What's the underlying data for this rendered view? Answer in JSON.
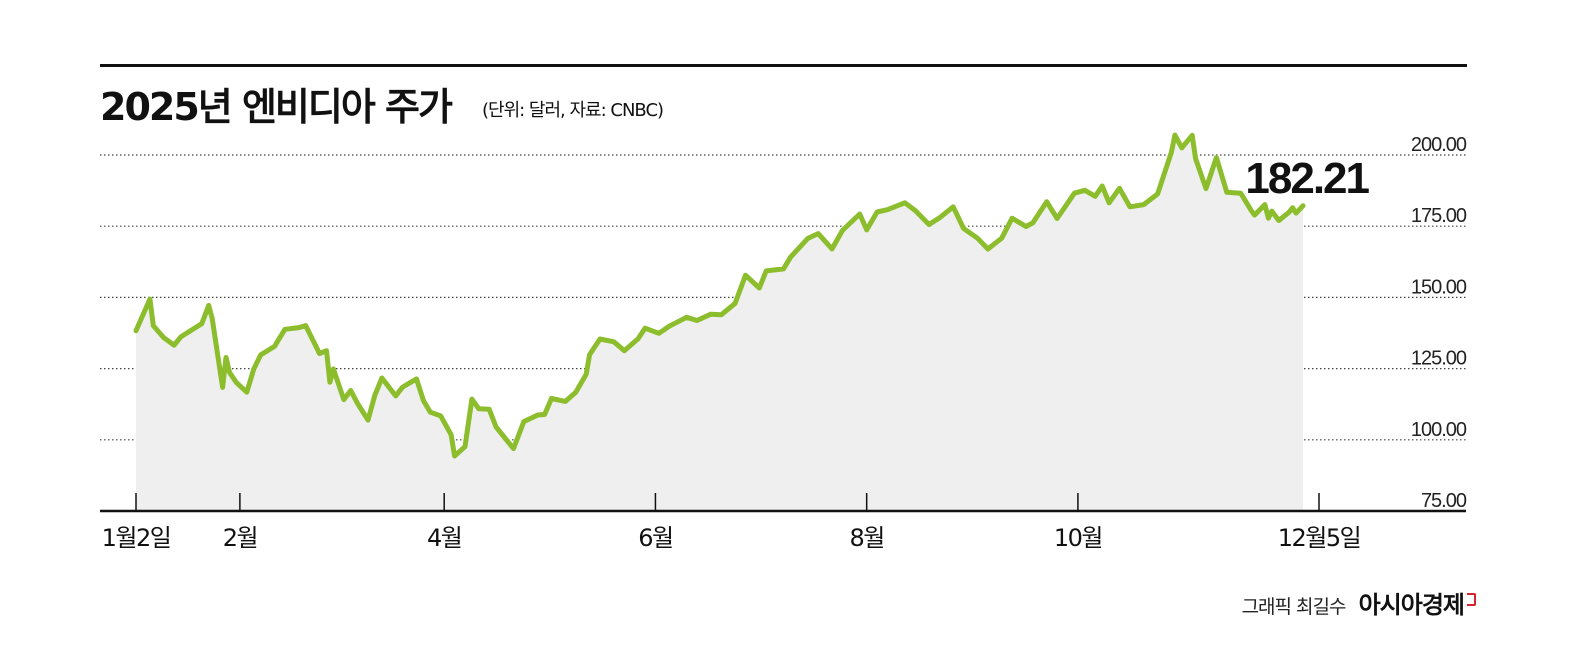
{
  "title": "2025년 엔비디아 주가",
  "subtitle": "(단위: 달러, 자료: CNBC)",
  "credit": {
    "text": "그래픽 최길수",
    "brand": "아시아경제"
  },
  "colors": {
    "line": "#8cbd2c",
    "area": "#efefef",
    "grid": "#444444",
    "axis": "#111111",
    "brand_mark": "#d9232e"
  },
  "chart_data": {
    "type": "area",
    "title": "2025년 엔비디아 주가",
    "subtitle": "(단위: 달러, 자료: CNBC)",
    "xlabel": "",
    "ylabel": "",
    "ylim": [
      75,
      200
    ],
    "yticks": [
      75,
      100,
      125,
      150,
      175,
      200
    ],
    "ytick_labels": [
      "75.00",
      "100.00",
      "125.00",
      "150.00",
      "175.00",
      "200.00"
    ],
    "xticks": [
      {
        "date": "2025-01-02",
        "label": "1월2일"
      },
      {
        "date": "2025-02-01",
        "label": "2월"
      },
      {
        "date": "2025-04-01",
        "label": "4월"
      },
      {
        "date": "2025-06-01",
        "label": "6월"
      },
      {
        "date": "2025-08-01",
        "label": "8월"
      },
      {
        "date": "2025-10-01",
        "label": "10월"
      },
      {
        "date": "2025-12-05",
        "label": "12월5일"
      }
    ],
    "grid": "horizontal dotted",
    "last_value_label": "182.21",
    "series": [
      {
        "points": [
          [
            "2025-01-02",
            138.3
          ],
          [
            "2025-01-06",
            149.4
          ],
          [
            "2025-01-07",
            140.1
          ],
          [
            "2025-01-10",
            135.9
          ],
          [
            "2025-01-13",
            133.2
          ],
          [
            "2025-01-15",
            136.2
          ],
          [
            "2025-01-17",
            137.7
          ],
          [
            "2025-01-21",
            140.8
          ],
          [
            "2025-01-23",
            147.2
          ],
          [
            "2025-01-24",
            142.6
          ],
          [
            "2025-01-27",
            118.4
          ],
          [
            "2025-01-28",
            128.9
          ],
          [
            "2025-01-29",
            123.7
          ],
          [
            "2025-01-31",
            120.1
          ],
          [
            "2025-02-03",
            116.7
          ],
          [
            "2025-02-05",
            124.8
          ],
          [
            "2025-02-07",
            129.8
          ],
          [
            "2025-02-11",
            132.8
          ],
          [
            "2025-02-14",
            138.8
          ],
          [
            "2025-02-18",
            139.4
          ],
          [
            "2025-02-20",
            140.1
          ],
          [
            "2025-02-24",
            130.3
          ],
          [
            "2025-02-26",
            131.3
          ],
          [
            "2025-02-27",
            120.2
          ],
          [
            "2025-02-28",
            124.9
          ],
          [
            "2025-03-03",
            114.1
          ],
          [
            "2025-03-05",
            117.3
          ],
          [
            "2025-03-07",
            112.7
          ],
          [
            "2025-03-10",
            106.9
          ],
          [
            "2025-03-12",
            115.7
          ],
          [
            "2025-03-14",
            121.7
          ],
          [
            "2025-03-18",
            115.4
          ],
          [
            "2025-03-20",
            118.5
          ],
          [
            "2025-03-24",
            121.4
          ],
          [
            "2025-03-26",
            113.8
          ],
          [
            "2025-03-28",
            109.7
          ],
          [
            "2025-03-31",
            108.4
          ],
          [
            "2025-04-03",
            101.8
          ],
          [
            "2025-04-04",
            94.3
          ],
          [
            "2025-04-07",
            97.6
          ],
          [
            "2025-04-09",
            114.3
          ],
          [
            "2025-04-11",
            110.9
          ],
          [
            "2025-04-14",
            110.7
          ],
          [
            "2025-04-16",
            104.5
          ],
          [
            "2025-04-21",
            96.9
          ],
          [
            "2025-04-24",
            106.4
          ],
          [
            "2025-04-28",
            108.7
          ],
          [
            "2025-04-30",
            108.9
          ],
          [
            "2025-05-02",
            114.5
          ],
          [
            "2025-05-06",
            113.5
          ],
          [
            "2025-05-09",
            116.7
          ],
          [
            "2025-05-12",
            123.0
          ],
          [
            "2025-05-13",
            129.9
          ],
          [
            "2025-05-16",
            135.4
          ],
          [
            "2025-05-20",
            134.4
          ],
          [
            "2025-05-23",
            131.3
          ],
          [
            "2025-05-27",
            135.5
          ],
          [
            "2025-05-29",
            139.2
          ],
          [
            "2025-06-02",
            137.4
          ],
          [
            "2025-06-05",
            139.9
          ],
          [
            "2025-06-10",
            143.0
          ],
          [
            "2025-06-13",
            141.9
          ],
          [
            "2025-06-17",
            144.1
          ],
          [
            "2025-06-20",
            143.9
          ],
          [
            "2025-06-24",
            147.9
          ],
          [
            "2025-06-27",
            157.8
          ],
          [
            "2025-07-01",
            153.3
          ],
          [
            "2025-07-03",
            159.3
          ],
          [
            "2025-07-08",
            160.0
          ],
          [
            "2025-07-10",
            164.1
          ],
          [
            "2025-07-15",
            170.7
          ],
          [
            "2025-07-18",
            172.4
          ],
          [
            "2025-07-22",
            167.0
          ],
          [
            "2025-07-25",
            173.5
          ],
          [
            "2025-07-30",
            179.3
          ],
          [
            "2025-08-01",
            173.7
          ],
          [
            "2025-08-04",
            180.0
          ],
          [
            "2025-08-07",
            180.8
          ],
          [
            "2025-08-12",
            183.2
          ],
          [
            "2025-08-15",
            180.5
          ],
          [
            "2025-08-19",
            175.6
          ],
          [
            "2025-08-22",
            177.9
          ],
          [
            "2025-08-26",
            181.8
          ],
          [
            "2025-08-29",
            174.2
          ],
          [
            "2025-09-02",
            170.8
          ],
          [
            "2025-09-05",
            167.0
          ],
          [
            "2025-09-09",
            170.8
          ],
          [
            "2025-09-12",
            177.8
          ],
          [
            "2025-09-16",
            174.9
          ],
          [
            "2025-09-18",
            176.2
          ],
          [
            "2025-09-22",
            183.6
          ],
          [
            "2025-09-25",
            177.7
          ],
          [
            "2025-09-30",
            186.6
          ],
          [
            "2025-10-03",
            187.6
          ],
          [
            "2025-10-06",
            185.5
          ],
          [
            "2025-10-08",
            189.1
          ],
          [
            "2025-10-10",
            183.2
          ],
          [
            "2025-10-13",
            188.3
          ],
          [
            "2025-10-16",
            181.8
          ],
          [
            "2025-10-20",
            182.6
          ],
          [
            "2025-10-24",
            186.3
          ],
          [
            "2025-10-28",
            201.0
          ],
          [
            "2025-10-29",
            207.0
          ],
          [
            "2025-10-31",
            202.5
          ],
          [
            "2025-11-03",
            206.9
          ],
          [
            "2025-11-04",
            198.7
          ],
          [
            "2025-11-07",
            188.2
          ],
          [
            "2025-11-10",
            199.1
          ],
          [
            "2025-11-13",
            186.9
          ],
          [
            "2025-11-17",
            186.6
          ],
          [
            "2025-11-20",
            180.6
          ],
          [
            "2025-11-21",
            178.9
          ],
          [
            "2025-11-24",
            182.6
          ],
          [
            "2025-11-25",
            177.8
          ],
          [
            "2025-11-26",
            180.3
          ],
          [
            "2025-11-28",
            177.0
          ],
          [
            "2025-12-01",
            179.9
          ],
          [
            "2025-12-02",
            181.5
          ],
          [
            "2025-12-03",
            179.6
          ],
          [
            "2025-12-05",
            182.21
          ]
        ]
      }
    ]
  }
}
